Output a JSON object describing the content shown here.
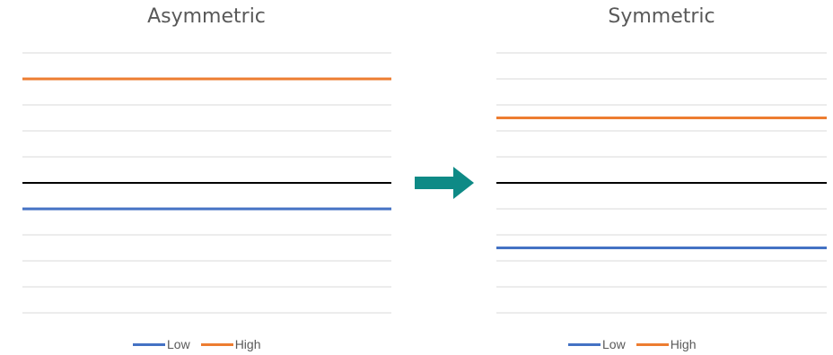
{
  "chart_data": [
    {
      "type": "line",
      "title": "Asymmetric",
      "grid": true,
      "series": [
        {
          "name": "Low",
          "color": "#4472C4",
          "value": -1
        },
        {
          "name": "High",
          "color": "#ED7D31",
          "value": 4
        }
      ],
      "baseline": {
        "color": "#000000",
        "value": 0
      },
      "gridlines": [
        -5,
        -4,
        -3,
        -2,
        -1,
        0,
        1,
        2,
        3,
        4,
        5
      ],
      "legend": "bottom"
    },
    {
      "type": "line",
      "title": "Symmetric",
      "grid": true,
      "series": [
        {
          "name": "Low",
          "color": "#4472C4",
          "value": -2.5
        },
        {
          "name": "High",
          "color": "#ED7D31",
          "value": 2.5
        }
      ],
      "baseline": {
        "color": "#000000",
        "value": 0
      },
      "gridlines": [
        -5,
        -4,
        -3,
        -2,
        -1,
        0,
        1,
        2,
        3,
        4,
        5
      ],
      "legend": "bottom"
    }
  ],
  "arrow": {
    "color": "#0E8A86",
    "icon": "arrow-right-icon"
  }
}
